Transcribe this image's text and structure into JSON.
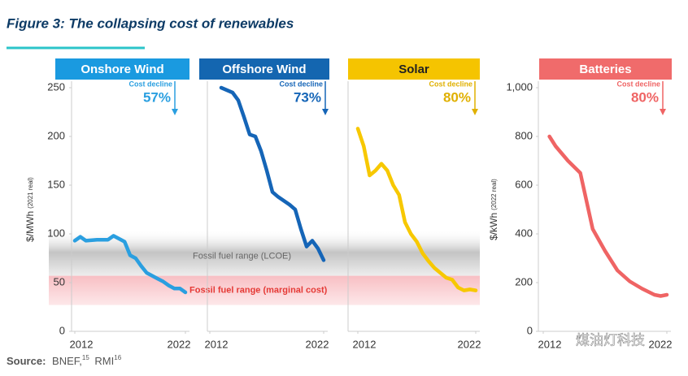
{
  "title": "Figure 3: The collapsing cost of renewables",
  "source_label": "Source:",
  "source": "BNEF,",
  "ref1": "15",
  "source2": "RMI",
  "ref2": "16",
  "watermark": "煤油灯科技",
  "bands": [
    {
      "label": "Fossil fuel range (LCOE)",
      "range": [
        57,
        105
      ],
      "color": "#bdbdbd"
    },
    {
      "label": "Fossil fuel range (marginal cost)",
      "range": [
        27,
        57
      ],
      "color": "#f9c9cc"
    }
  ],
  "chart_data": [
    {
      "type": "line",
      "title": "Onshore Wind",
      "header_color": "#1a9ae0",
      "color": "#2a9fe0",
      "annotation": "Cost decline",
      "decline": "57%",
      "x": [
        2012,
        2012.5,
        2013,
        2014,
        2015,
        2015.5,
        2016,
        2016.5,
        2017,
        2017.5,
        2018,
        2018.5,
        2019,
        2019.5,
        2020,
        2020.5,
        2021,
        2021.5,
        2022
      ],
      "values": [
        93,
        97,
        93,
        94,
        94,
        98,
        95,
        92,
        78,
        75,
        67,
        60,
        57,
        54,
        51,
        47,
        44,
        44,
        40
      ],
      "xlim": [
        2012,
        2022
      ],
      "xticks": [
        2012,
        2022
      ],
      "ylim": [
        0,
        250
      ],
      "yticks": [
        0,
        50,
        100,
        150,
        200,
        250
      ],
      "ylabel": "$/MWh",
      "ylabel_note": "(2021 real)"
    },
    {
      "type": "line",
      "title": "Offshore Wind",
      "header_color": "#1466b0",
      "color": "#1565b7",
      "annotation": "Cost decline",
      "decline": "73%",
      "x": [
        2013,
        2014,
        2014.5,
        2015,
        2015.5,
        2016,
        2016.5,
        2017,
        2017.5,
        2018,
        2019,
        2019.5,
        2020,
        2020.5,
        2021,
        2021.5,
        2022
      ],
      "values": [
        250,
        245,
        237,
        220,
        202,
        200,
        185,
        165,
        143,
        138,
        130,
        125,
        105,
        87,
        93,
        85,
        73
      ],
      "xlim": [
        2012,
        2022
      ],
      "xticks": [
        2012,
        2022
      ],
      "ylim": [
        0,
        250
      ]
    },
    {
      "type": "line",
      "title": "Solar",
      "header_color": "#f5c400",
      "color": "#f7c800",
      "annotation": "Cost decline",
      "decline": "80%",
      "x": [
        2012,
        2012.5,
        2013,
        2013.5,
        2014,
        2014.5,
        2015,
        2015.5,
        2016,
        2016.5,
        2017,
        2017.5,
        2018,
        2018.5,
        2019,
        2019.5,
        2020,
        2020.5,
        2021,
        2021.5,
        2022
      ],
      "values": [
        208,
        190,
        160,
        165,
        172,
        165,
        150,
        140,
        112,
        100,
        92,
        80,
        72,
        65,
        60,
        55,
        53,
        45,
        42,
        43,
        42
      ],
      "xlim": [
        2012,
        2022
      ],
      "xticks": [
        2012,
        2022
      ],
      "ylim": [
        0,
        250
      ]
    },
    {
      "type": "line",
      "title": "Batteries",
      "header_color": "#f06b6b",
      "color": "#ef6464",
      "annotation": "Cost decline",
      "decline": "80%",
      "x": [
        2012.5,
        2013,
        2014,
        2015,
        2016,
        2017,
        2018,
        2019,
        2020,
        2021,
        2021.5,
        2022
      ],
      "values": [
        800,
        760,
        700,
        650,
        420,
        330,
        250,
        205,
        175,
        150,
        145,
        150
      ],
      "xlim": [
        2012,
        2022
      ],
      "xticks": [
        2012,
        2022
      ],
      "ylim": [
        0,
        1000
      ],
      "yticks": [
        0,
        200,
        400,
        600,
        800,
        {
          "value": 1000,
          "label": "1,000"
        }
      ],
      "ylabel": "$/kWh",
      "ylabel_note": "(2022 real)"
    }
  ]
}
